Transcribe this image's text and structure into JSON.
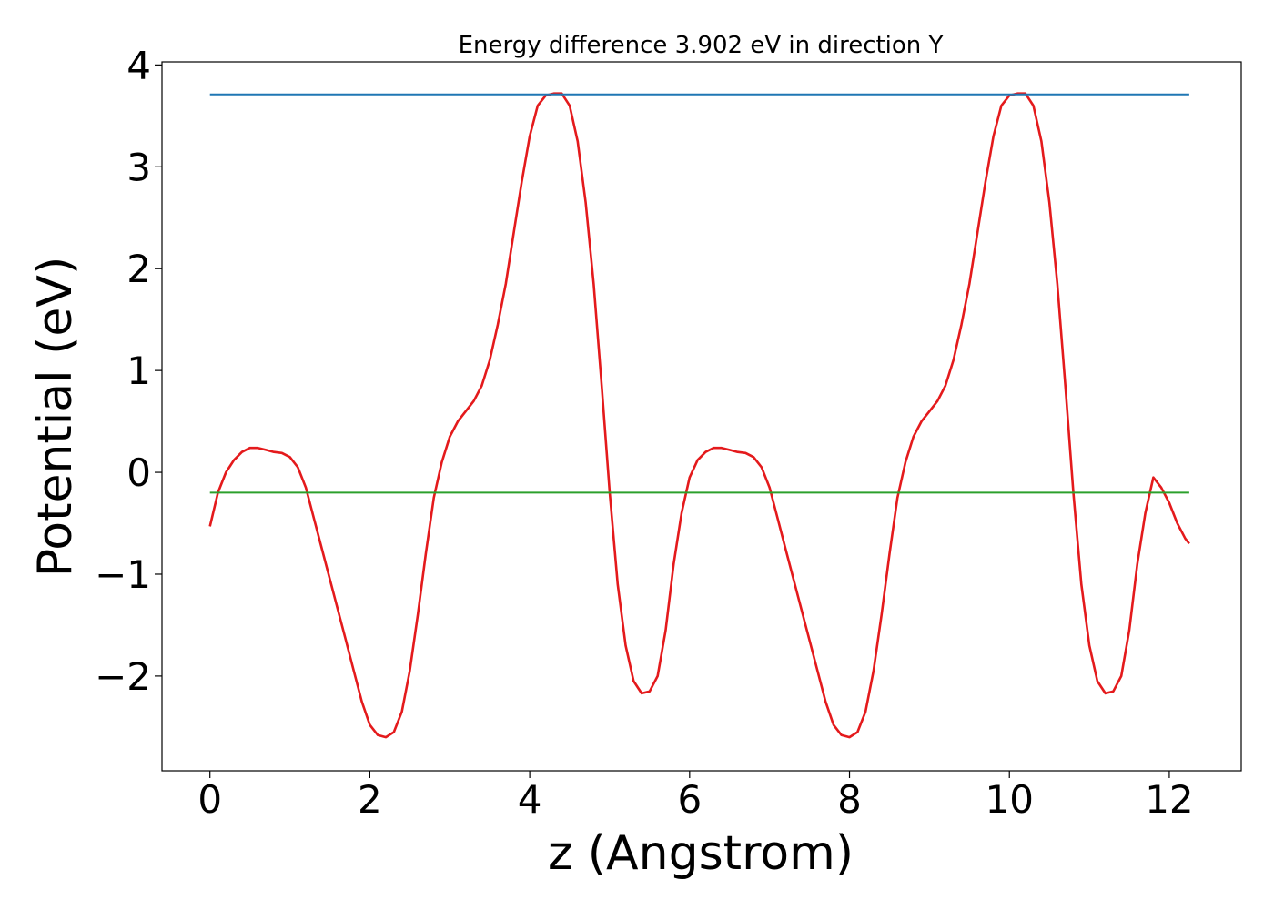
{
  "chart_data": {
    "type": "line",
    "title": "Energy difference 3.902 eV in direction Y",
    "xlabel": "z (Angstrom)",
    "ylabel": "Potential (eV)",
    "xlim": [
      -0.6,
      12.9
    ],
    "ylim": [
      -2.93,
      4.03
    ],
    "xticks": [
      0,
      2,
      4,
      6,
      8,
      10,
      12
    ],
    "xtick_labels": [
      "0",
      "2",
      "4",
      "6",
      "8",
      "10",
      "12"
    ],
    "yticks": [
      -2,
      -1,
      0,
      1,
      2,
      3,
      4
    ],
    "ytick_labels": [
      "−2",
      "−1",
      "0",
      "1",
      "2",
      "3",
      "4"
    ],
    "grid": false,
    "series": [
      {
        "color": "#e41a1c",
        "x": [
          0.0,
          0.1,
          0.2,
          0.3,
          0.4,
          0.5,
          0.6,
          0.7,
          0.8,
          0.9,
          1.0,
          1.1,
          1.2,
          1.3,
          1.4,
          1.5,
          1.6,
          1.7,
          1.8,
          1.9,
          2.0,
          2.1,
          2.2,
          2.3,
          2.4,
          2.5,
          2.6,
          2.7,
          2.8,
          2.9,
          3.0,
          3.1,
          3.2,
          3.3,
          3.4,
          3.5,
          3.6,
          3.7,
          3.8,
          3.9,
          4.0,
          4.1,
          4.2,
          4.3,
          4.4,
          4.5,
          4.6,
          4.7,
          4.8,
          4.9,
          5.0,
          5.1,
          5.2,
          5.3,
          5.4,
          5.5,
          5.6,
          5.7,
          5.8,
          5.9,
          6.0,
          6.1,
          6.2,
          6.3,
          6.4,
          6.5,
          6.6,
          6.7,
          6.8,
          6.9,
          7.0,
          7.1,
          7.2,
          7.3,
          7.4,
          7.5,
          7.6,
          7.7,
          7.8,
          7.9,
          8.0,
          8.1,
          8.2,
          8.3,
          8.4,
          8.5,
          8.6,
          8.7,
          8.8,
          8.9,
          9.0,
          9.1,
          9.2,
          9.3,
          9.4,
          9.5,
          9.6,
          9.7,
          9.8,
          9.9,
          10.0,
          10.1,
          10.2,
          10.3,
          10.4,
          10.5,
          10.6,
          10.7,
          10.8,
          10.9,
          11.0,
          11.1,
          11.2,
          11.3,
          11.4,
          11.5,
          11.6,
          11.7,
          11.8,
          11.9,
          12.0,
          12.1,
          12.2,
          12.25
        ],
        "y": [
          -0.53,
          -0.2,
          0.0,
          0.12,
          0.2,
          0.24,
          0.24,
          0.22,
          0.2,
          0.19,
          0.15,
          0.05,
          -0.15,
          -0.45,
          -0.75,
          -1.05,
          -1.35,
          -1.65,
          -1.95,
          -2.25,
          -2.48,
          -2.58,
          -2.6,
          -2.55,
          -2.35,
          -1.95,
          -1.4,
          -0.8,
          -0.25,
          0.1,
          0.35,
          0.5,
          0.6,
          0.7,
          0.85,
          1.1,
          1.45,
          1.85,
          2.35,
          2.85,
          3.3,
          3.6,
          3.7,
          3.72,
          3.72,
          3.6,
          3.25,
          2.65,
          1.85,
          0.85,
          -0.2,
          -1.1,
          -1.7,
          -2.05,
          -2.17,
          -2.15,
          -2.0,
          -1.55,
          -0.9,
          -0.4,
          -0.05,
          0.12,
          0.2,
          0.24,
          0.24,
          0.22,
          0.2,
          0.19,
          0.15,
          0.05,
          -0.15,
          -0.45,
          -0.75,
          -1.05,
          -1.35,
          -1.65,
          -1.95,
          -2.25,
          -2.48,
          -2.58,
          -2.6,
          -2.55,
          -2.35,
          -1.95,
          -1.4,
          -0.8,
          -0.25,
          0.1,
          0.35,
          0.5,
          0.6,
          0.7,
          0.85,
          1.1,
          1.45,
          1.85,
          2.35,
          2.85,
          3.3,
          3.6,
          3.7,
          3.72,
          3.72,
          3.6,
          3.25,
          2.65,
          1.85,
          0.85,
          -0.2,
          -1.1,
          -1.7,
          -2.05,
          -2.17,
          -2.15,
          -2.0,
          -1.55,
          -0.9,
          -0.4,
          -0.05,
          -0.15,
          -0.3,
          -0.5,
          -0.65,
          -0.7
        ]
      },
      {
        "color": "#1f77b4",
        "x": [
          0.0,
          12.25
        ],
        "y": [
          3.71,
          3.71
        ]
      },
      {
        "color": "#2ca02c",
        "x": [
          0.0,
          12.25
        ],
        "y": [
          -0.2,
          -0.2
        ]
      }
    ]
  }
}
